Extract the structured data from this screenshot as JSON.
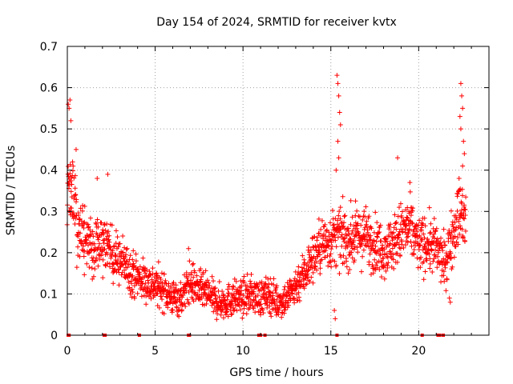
{
  "chart_data": {
    "type": "scatter",
    "title": "Day 154 of 2024, SRMTID for receiver kvtx",
    "xlabel": "GPS time / hours",
    "ylabel": "SRMTID / TECUs",
    "xlim": [
      0,
      24
    ],
    "ylim": [
      0,
      0.7
    ],
    "xticks": [
      0,
      5,
      10,
      15,
      20
    ],
    "yticks": [
      0,
      0.1,
      0.2,
      0.3,
      0.4,
      0.5,
      0.6,
      0.7
    ],
    "xtick_labels": [
      "0",
      "5",
      "10",
      "15",
      "20"
    ],
    "ytick_labels": [
      "0",
      "0.1",
      "0.2",
      "0.3",
      "0.4",
      "0.5",
      "0.6",
      "0.7"
    ],
    "grid": true,
    "marker": "+",
    "color": "#ff0000",
    "series": [
      {
        "name": "SRMTID",
        "trend": [
          {
            "x": 0.0,
            "y": 0.36
          },
          {
            "x": 0.25,
            "y": 0.34
          },
          {
            "x": 0.5,
            "y": 0.29
          },
          {
            "x": 1.0,
            "y": 0.23
          },
          {
            "x": 1.5,
            "y": 0.21
          },
          {
            "x": 2.0,
            "y": 0.22
          },
          {
            "x": 2.5,
            "y": 0.2
          },
          {
            "x": 3.0,
            "y": 0.18
          },
          {
            "x": 3.5,
            "y": 0.16
          },
          {
            "x": 4.0,
            "y": 0.14
          },
          {
            "x": 4.5,
            "y": 0.13
          },
          {
            "x": 5.0,
            "y": 0.12
          },
          {
            "x": 5.5,
            "y": 0.11
          },
          {
            "x": 6.0,
            "y": 0.09
          },
          {
            "x": 6.5,
            "y": 0.09
          },
          {
            "x": 7.0,
            "y": 0.13
          },
          {
            "x": 7.5,
            "y": 0.11
          },
          {
            "x": 8.0,
            "y": 0.1
          },
          {
            "x": 8.5,
            "y": 0.08
          },
          {
            "x": 9.0,
            "y": 0.08
          },
          {
            "x": 9.5,
            "y": 0.09
          },
          {
            "x": 10.0,
            "y": 0.09
          },
          {
            "x": 10.5,
            "y": 0.1
          },
          {
            "x": 11.0,
            "y": 0.09
          },
          {
            "x": 11.5,
            "y": 0.1
          },
          {
            "x": 12.0,
            "y": 0.08
          },
          {
            "x": 12.5,
            "y": 0.09
          },
          {
            "x": 13.0,
            "y": 0.12
          },
          {
            "x": 13.5,
            "y": 0.15
          },
          {
            "x": 14.0,
            "y": 0.19
          },
          {
            "x": 14.5,
            "y": 0.22
          },
          {
            "x": 15.0,
            "y": 0.23
          },
          {
            "x": 15.5,
            "y": 0.24
          },
          {
            "x": 16.0,
            "y": 0.23
          },
          {
            "x": 16.5,
            "y": 0.24
          },
          {
            "x": 17.0,
            "y": 0.24
          },
          {
            "x": 17.5,
            "y": 0.22
          },
          {
            "x": 18.0,
            "y": 0.21
          },
          {
            "x": 18.5,
            "y": 0.22
          },
          {
            "x": 19.0,
            "y": 0.25
          },
          {
            "x": 19.5,
            "y": 0.26
          },
          {
            "x": 20.0,
            "y": 0.22
          },
          {
            "x": 20.5,
            "y": 0.22
          },
          {
            "x": 21.0,
            "y": 0.21
          },
          {
            "x": 21.5,
            "y": 0.17
          },
          {
            "x": 22.0,
            "y": 0.26
          },
          {
            "x": 22.4,
            "y": 0.3
          },
          {
            "x": 22.7,
            "y": 0.26
          }
        ],
        "spikes": [
          {
            "x": 0.05,
            "y": 0.56
          },
          {
            "x": 0.1,
            "y": 0.55
          },
          {
            "x": 0.15,
            "y": 0.57
          },
          {
            "x": 0.2,
            "y": 0.52
          },
          {
            "x": 0.3,
            "y": 0.42
          },
          {
            "x": 0.5,
            "y": 0.45
          },
          {
            "x": 2.3,
            "y": 0.39
          },
          {
            "x": 1.7,
            "y": 0.38
          },
          {
            "x": 6.9,
            "y": 0.21
          },
          {
            "x": 15.35,
            "y": 0.63
          },
          {
            "x": 15.4,
            "y": 0.61
          },
          {
            "x": 15.45,
            "y": 0.58
          },
          {
            "x": 15.5,
            "y": 0.54
          },
          {
            "x": 15.55,
            "y": 0.51
          },
          {
            "x": 15.4,
            "y": 0.47
          },
          {
            "x": 15.45,
            "y": 0.43
          },
          {
            "x": 15.3,
            "y": 0.4
          },
          {
            "x": 18.8,
            "y": 0.43
          },
          {
            "x": 19.5,
            "y": 0.37
          },
          {
            "x": 22.4,
            "y": 0.61
          },
          {
            "x": 22.45,
            "y": 0.58
          },
          {
            "x": 22.5,
            "y": 0.55
          },
          {
            "x": 22.35,
            "y": 0.53
          },
          {
            "x": 22.4,
            "y": 0.5
          },
          {
            "x": 22.55,
            "y": 0.47
          },
          {
            "x": 22.6,
            "y": 0.44
          },
          {
            "x": 22.5,
            "y": 0.41
          },
          {
            "x": 22.3,
            "y": 0.38
          },
          {
            "x": 21.75,
            "y": 0.09
          },
          {
            "x": 21.8,
            "y": 0.08
          },
          {
            "x": 15.2,
            "y": 0.06
          },
          {
            "x": 15.25,
            "y": 0.04
          }
        ],
        "zero_marks": [
          0.05,
          0.1,
          2.1,
          2.15,
          4.1,
          6.9,
          6.95,
          10.9,
          11.0,
          11.25,
          15.35,
          20.2,
          21.1,
          21.2,
          21.4
        ]
      }
    ]
  }
}
